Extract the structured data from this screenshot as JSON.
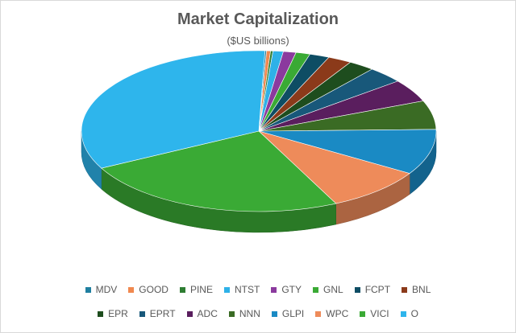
{
  "chart_data": {
    "type": "pie",
    "title": "Market Capitalization",
    "subtitle": "($US billions)",
    "legend_position": "bottom",
    "three_d": true,
    "slices": [
      {
        "label": "MDV",
        "value": 0.2,
        "color": "#1F7FA0"
      },
      {
        "label": "GOOD",
        "value": 0.5,
        "color": "#F0884F"
      },
      {
        "label": "PINE",
        "value": 0.3,
        "color": "#2E7D32"
      },
      {
        "label": "NTST",
        "value": 1.3,
        "color": "#2EB1E8"
      },
      {
        "label": "GTY",
        "value": 1.6,
        "color": "#8B3A9E"
      },
      {
        "label": "GNL",
        "value": 1.8,
        "color": "#3AAA35"
      },
      {
        "label": "FCPT",
        "value": 2.5,
        "color": "#0E4D64"
      },
      {
        "label": "BNL",
        "value": 3.0,
        "color": "#8B3A1A"
      },
      {
        "label": "EPR",
        "value": 3.3,
        "color": "#1E4D1E"
      },
      {
        "label": "EPRT",
        "value": 4.6,
        "color": "#18587A"
      },
      {
        "label": "ADC",
        "value": 6.3,
        "color": "#5A1E5E"
      },
      {
        "label": "NNN",
        "value": 8.0,
        "color": "#3A6B24"
      },
      {
        "label": "GLPI",
        "value": 12.7,
        "color": "#1A8AC4"
      },
      {
        "label": "WPC",
        "value": 12.5,
        "color": "#EE8B5A"
      },
      {
        "label": "VICI",
        "value": 34.0,
        "color": "#3AAA35"
      },
      {
        "label": "O",
        "value": 46.0,
        "color": "#2EB5EC"
      }
    ],
    "legend_rows": [
      [
        "MDV",
        "GOOD",
        "PINE",
        "NTST",
        "GTY",
        "GNL",
        "FCPT",
        "BNL"
      ],
      [
        "EPR",
        "EPRT",
        "ADC",
        "NNN",
        "GLPI",
        "WPC",
        "VICI",
        "O"
      ]
    ]
  }
}
